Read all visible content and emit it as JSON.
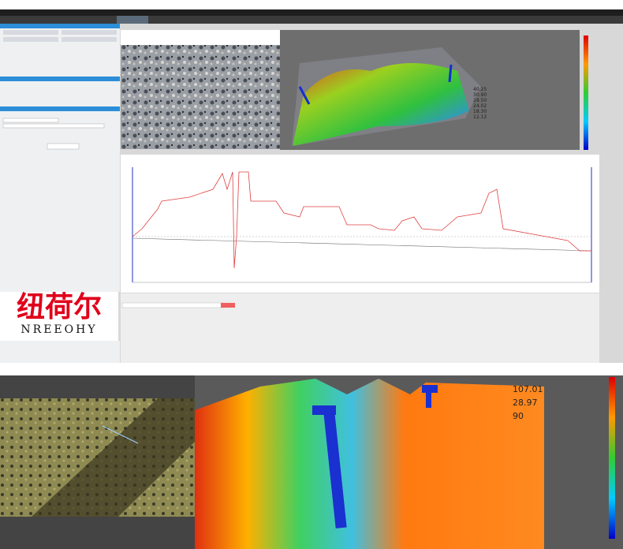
{
  "logo": {
    "cn": "纽荷尔",
    "en": "NREEOHY"
  },
  "top_view_labels": [
    "40.25",
    "30.90",
    "28.50",
    "24.02",
    "18.30",
    "12.12"
  ],
  "bottom_view_labels": [
    "107.01",
    "28.97",
    "90"
  ]
}
